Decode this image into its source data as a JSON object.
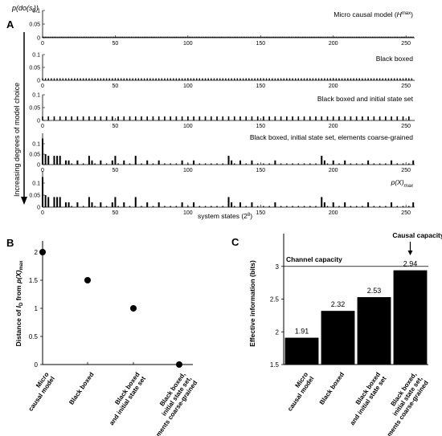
{
  "panel_a": {
    "letter": "A",
    "ylabel_main": "p(do(s",
    "ylabel_sub": "i",
    "ylabel_end": "))",
    "side_label": "Increasing degrees of model choice",
    "xlabel_main": "system states (2",
    "xlabel_sup": "8",
    "xlabel_end": ")"
  },
  "panel_b": {
    "letter": "B"
  },
  "panel_c": {
    "letter": "C",
    "callout": "Causal capacity",
    "line_label": "Channel capacity"
  },
  "chart_data": [
    {
      "type": "bar",
      "panel": "A",
      "xlim": [
        0,
        256
      ],
      "x_ticks": [
        0,
        50,
        100,
        150,
        200,
        250
      ],
      "x_label": "system states (2^8)",
      "y_label": "p(do(s_i))",
      "subplots": [
        {
          "title": "Micro causal model (H^max)",
          "ylim": [
            0,
            0.1
          ],
          "y_ticks": [
            "0.1",
            "0.05",
            "0"
          ],
          "values_note": "uniform over all 256 states",
          "uniform_value": 0.0039
        },
        {
          "title": "Black boxed",
          "ylim": [
            0,
            0.1
          ],
          "y_ticks": [
            "0.1",
            "0.05",
            "0"
          ],
          "values_note": "uniform over states, thicker bars",
          "uniform_value": 0.0078
        },
        {
          "title": "Black boxed and initial state set",
          "ylim": [
            0,
            0.1
          ],
          "y_ticks": [
            "0.1",
            "0.05",
            "0"
          ],
          "values_note": "uniform over states with mass",
          "uniform_value": 0.0156
        },
        {
          "title": "Black boxed, initial state set, elements coarse-grained",
          "ylim": [
            0,
            0.15
          ],
          "y_ticks": [
            "0.1",
            "0.05",
            "0"
          ],
          "bars": [
            [
              0,
              0.125
            ],
            [
              2,
              0.05
            ],
            [
              4,
              0.042
            ],
            [
              8,
              0.042
            ],
            [
              10,
              0.042
            ],
            [
              12,
              0.042
            ],
            [
              16,
              0.02
            ],
            [
              18,
              0.02
            ],
            [
              24,
              0.02
            ],
            [
              32,
              0.042
            ],
            [
              34,
              0.02
            ],
            [
              40,
              0.02
            ],
            [
              48,
              0.02
            ],
            [
              50,
              0.042
            ],
            [
              56,
              0.02
            ],
            [
              64,
              0.042
            ],
            [
              72,
              0.02
            ],
            [
              80,
              0.02
            ],
            [
              96,
              0.02
            ],
            [
              104,
              0.02
            ],
            [
              128,
              0.042
            ],
            [
              130,
              0.02
            ],
            [
              136,
              0.02
            ],
            [
              144,
              0.02
            ],
            [
              160,
              0.02
            ],
            [
              192,
              0.042
            ],
            [
              194,
              0.02
            ],
            [
              200,
              0.02
            ],
            [
              208,
              0.02
            ],
            [
              224,
              0.02
            ],
            [
              240,
              0.02
            ],
            [
              255,
              0.02
            ]
          ],
          "background_value": 0.005
        },
        {
          "title": "p(X)max",
          "ylim": [
            0,
            0.15
          ],
          "y_ticks": [
            "0.1",
            "0.05",
            "0"
          ],
          "bars": [
            [
              0,
              0.125
            ],
            [
              2,
              0.05
            ],
            [
              4,
              0.042
            ],
            [
              8,
              0.042
            ],
            [
              10,
              0.042
            ],
            [
              12,
              0.042
            ],
            [
              16,
              0.02
            ],
            [
              18,
              0.02
            ],
            [
              24,
              0.02
            ],
            [
              32,
              0.042
            ],
            [
              34,
              0.02
            ],
            [
              40,
              0.02
            ],
            [
              48,
              0.02
            ],
            [
              50,
              0.042
            ],
            [
              56,
              0.02
            ],
            [
              64,
              0.042
            ],
            [
              72,
              0.02
            ],
            [
              80,
              0.02
            ],
            [
              96,
              0.02
            ],
            [
              104,
              0.02
            ],
            [
              128,
              0.042
            ],
            [
              130,
              0.02
            ],
            [
              136,
              0.02
            ],
            [
              144,
              0.02
            ],
            [
              160,
              0.02
            ],
            [
              192,
              0.042
            ],
            [
              194,
              0.02
            ],
            [
              200,
              0.02
            ],
            [
              208,
              0.02
            ],
            [
              224,
              0.02
            ],
            [
              240,
              0.02
            ],
            [
              255,
              0.02
            ]
          ],
          "background_value": 0.005
        }
      ]
    },
    {
      "type": "scatter",
      "panel": "B",
      "y_label": "Distance of I_D from p(X)max",
      "ylim": [
        0,
        2.2
      ],
      "y_ticks": [
        0,
        0.5,
        1,
        1.5,
        2
      ],
      "categories": [
        "Micro causal model",
        "Black boxed",
        "Black boxed and initial state set",
        "Black boxed, initial state set, elements coarse-grained"
      ],
      "values": [
        2.0,
        1.5,
        1.0,
        0.0
      ]
    },
    {
      "type": "bar",
      "panel": "C",
      "y_label": "Effective information (bits)",
      "ylim": [
        1.5,
        3.5
      ],
      "y_ticks": [
        1.5,
        2,
        2.5,
        3
      ],
      "categories": [
        "Micro causal model",
        "Black boxed",
        "Black boxed and initial state set",
        "Black boxed, initial state set, elements coarse-grained"
      ],
      "values": [
        1.91,
        2.32,
        2.53,
        2.94
      ],
      "value_labels": [
        "1.91",
        "2.32",
        "2.53",
        "2.94"
      ],
      "reference_line": {
        "label": "Channel capacity",
        "value": 3.0
      },
      "annotation": "Causal capacity"
    }
  ]
}
